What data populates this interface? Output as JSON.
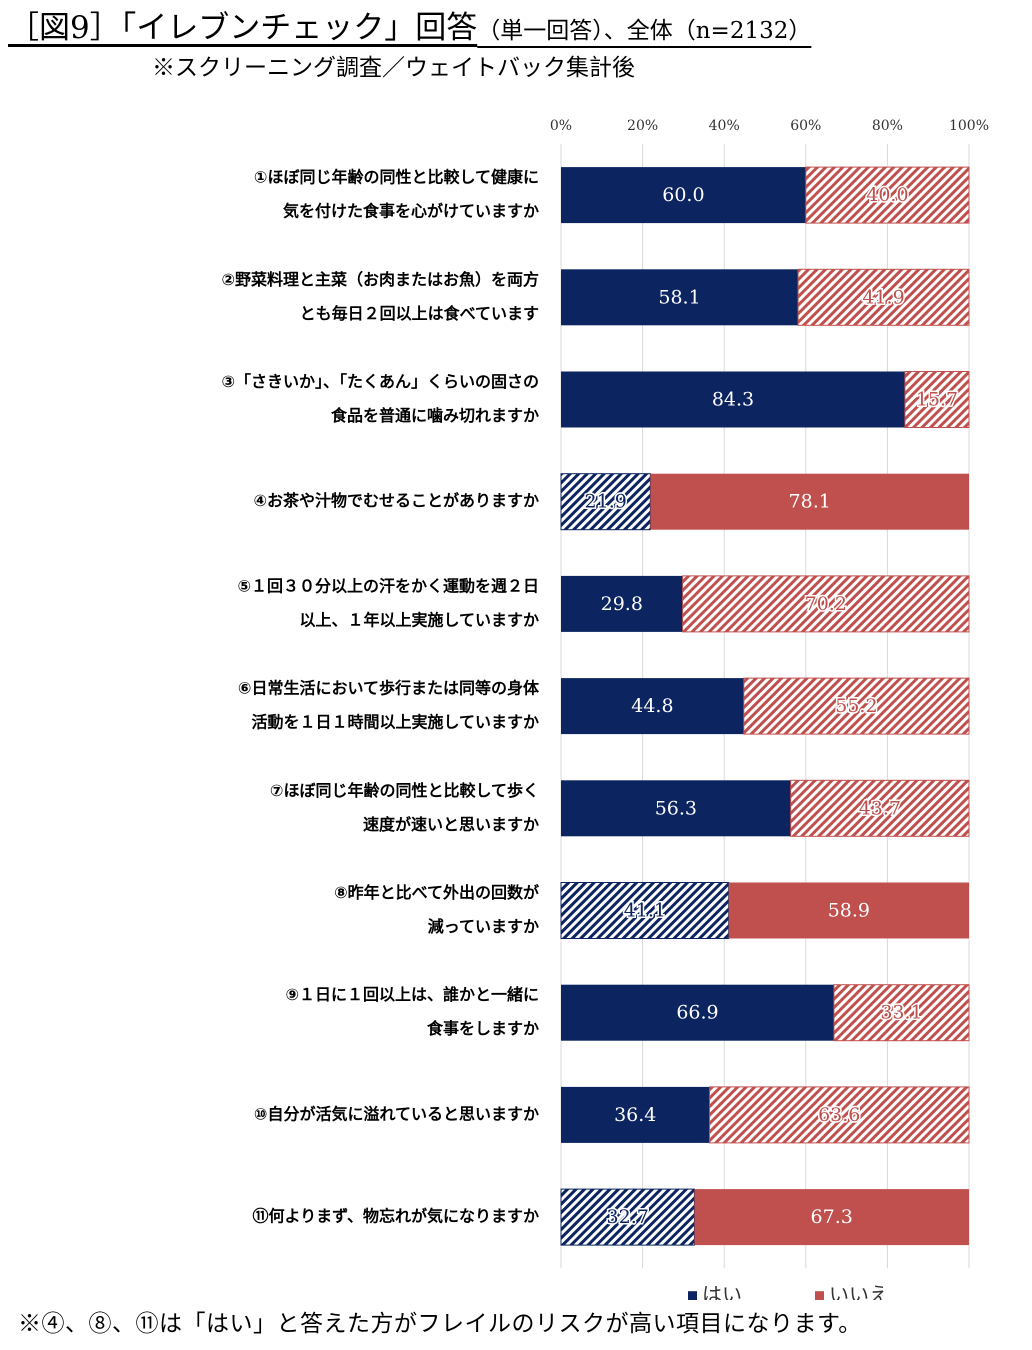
{
  "header": {
    "title": "［図9］「イレブンチェック」回答",
    "title_tail": "（単一回答）、全体（n=2132）",
    "subtitle": "※スクリーニング調査／ウェイトバック集計後"
  },
  "footnote": "※④、⑧、⑪は「はい」と答えた方がフレイルのリスクが高い項目になります。",
  "colors": {
    "yes": "#0c2460",
    "no": "#c0504d",
    "grid": "#d9d9d9"
  },
  "chart_data": {
    "type": "bar",
    "orientation": "horizontal",
    "stacked": true,
    "percent_stacked": true,
    "xlim": [
      0,
      100
    ],
    "x_ticks": [
      "0%",
      "20%",
      "40%",
      "60%",
      "80%",
      "100%"
    ],
    "x_axis_position": "top",
    "grid": true,
    "legend_position": "bottom",
    "categories": [
      [
        "①ほぼ同じ年齢の同性と比較して健康に",
        "気を付けた食事を心がけていますか"
      ],
      [
        "②野菜料理と主菜（お肉またはお魚）を両方",
        "とも毎日２回以上は食べています"
      ],
      [
        "③「さきいか」、「たくあん」くらいの固さの",
        "食品を普通に噛み切れますか"
      ],
      [
        "④お茶や汁物でむせることがありますか"
      ],
      [
        "⑤１回３０分以上の汗をかく運動を週２日",
        "以上、１年以上実施していますか"
      ],
      [
        "⑥日常生活において歩行または同等の身体",
        "活動を１日１時間以上実施していますか"
      ],
      [
        "⑦ほぼ同じ年齢の同性と比較して歩く",
        "速度が速いと思いますか"
      ],
      [
        "⑧昨年と比べて外出の回数が",
        "減っていますか"
      ],
      [
        "⑨１日に１回以上は、誰かと一緒に",
        "食事をしますか"
      ],
      [
        "⑩自分が活気に溢れていると思いますか"
      ],
      [
        "⑪何よりまず、物忘れが気になりますか"
      ]
    ],
    "risk_items_hatched_yes": [
      3,
      7,
      10
    ],
    "series": [
      {
        "name": "はい",
        "values": [
          60.0,
          58.1,
          84.3,
          21.9,
          29.8,
          44.8,
          56.3,
          41.1,
          66.9,
          36.4,
          32.7
        ],
        "labels": [
          "60.0",
          "58.1",
          "84.3",
          "21.9",
          "29.8",
          "44.8",
          "56.3",
          "41.1",
          "66.9",
          "36.4",
          "32.7"
        ]
      },
      {
        "name": "いいえ",
        "values": [
          40.0,
          41.9,
          15.7,
          78.1,
          70.2,
          55.2,
          43.7,
          58.9,
          33.1,
          63.6,
          67.3
        ],
        "labels": [
          "40.0",
          "41.9",
          "15.7",
          "78.1",
          "70.2",
          "55.2",
          "43.7",
          "58.9",
          "33.1",
          "63.6",
          "67.3"
        ]
      }
    ]
  }
}
